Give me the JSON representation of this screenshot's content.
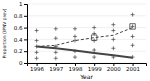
{
  "chart_data": {
    "type": "line",
    "xlabel": "Year",
    "ylabel": "Proportion (IPNV prev)",
    "x": [
      1996,
      1997,
      1998,
      1999,
      2000,
      2001
    ],
    "series": [
      {
        "type": "scatter",
        "marker": "plus",
        "color": "#444444",
        "x": [
          1996,
          1996,
          1996,
          1996,
          1996,
          1997,
          1997,
          1997,
          1997,
          1997,
          1998,
          1998,
          1998,
          1998,
          1998,
          1999,
          1999,
          1999,
          1999,
          1999,
          2000,
          2000,
          2000,
          2000,
          2000,
          2001,
          2001,
          2001,
          2001,
          2001
        ],
        "values": [
          0.08,
          0.18,
          0.28,
          0.38,
          0.55,
          0.08,
          0.18,
          0.28,
          0.42,
          0.58,
          0.1,
          0.2,
          0.38,
          0.45,
          0.58,
          0.1,
          0.22,
          0.38,
          0.5,
          0.6,
          0.1,
          0.25,
          0.4,
          0.55,
          0.65,
          0.1,
          0.3,
          0.45,
          0.62,
          0.82
        ]
      },
      {
        "type": "scatter",
        "marker": "square",
        "color": "#444444",
        "x": [
          1999,
          2001
        ],
        "values": [
          0.43,
          0.62
        ]
      },
      {
        "type": "line",
        "line_style": "dashed",
        "color": "#444444",
        "values": [
          0.28,
          0.3,
          0.38,
          0.43,
          0.47,
          0.6
        ]
      },
      {
        "type": "line",
        "line_style": "solid",
        "color": "#444444",
        "values": [
          0.28,
          0.25,
          0.21,
          0.17,
          0.13,
          0.09
        ]
      }
    ],
    "xlim": [
      1995.5,
      2001.7
    ],
    "ylim": [
      0,
      1
    ],
    "xticks": [
      1996,
      1997,
      1998,
      1999,
      2000,
      2001
    ],
    "yticks": [
      0,
      0.2,
      0.4,
      0.6,
      0.8,
      1
    ],
    "grid": "y"
  }
}
